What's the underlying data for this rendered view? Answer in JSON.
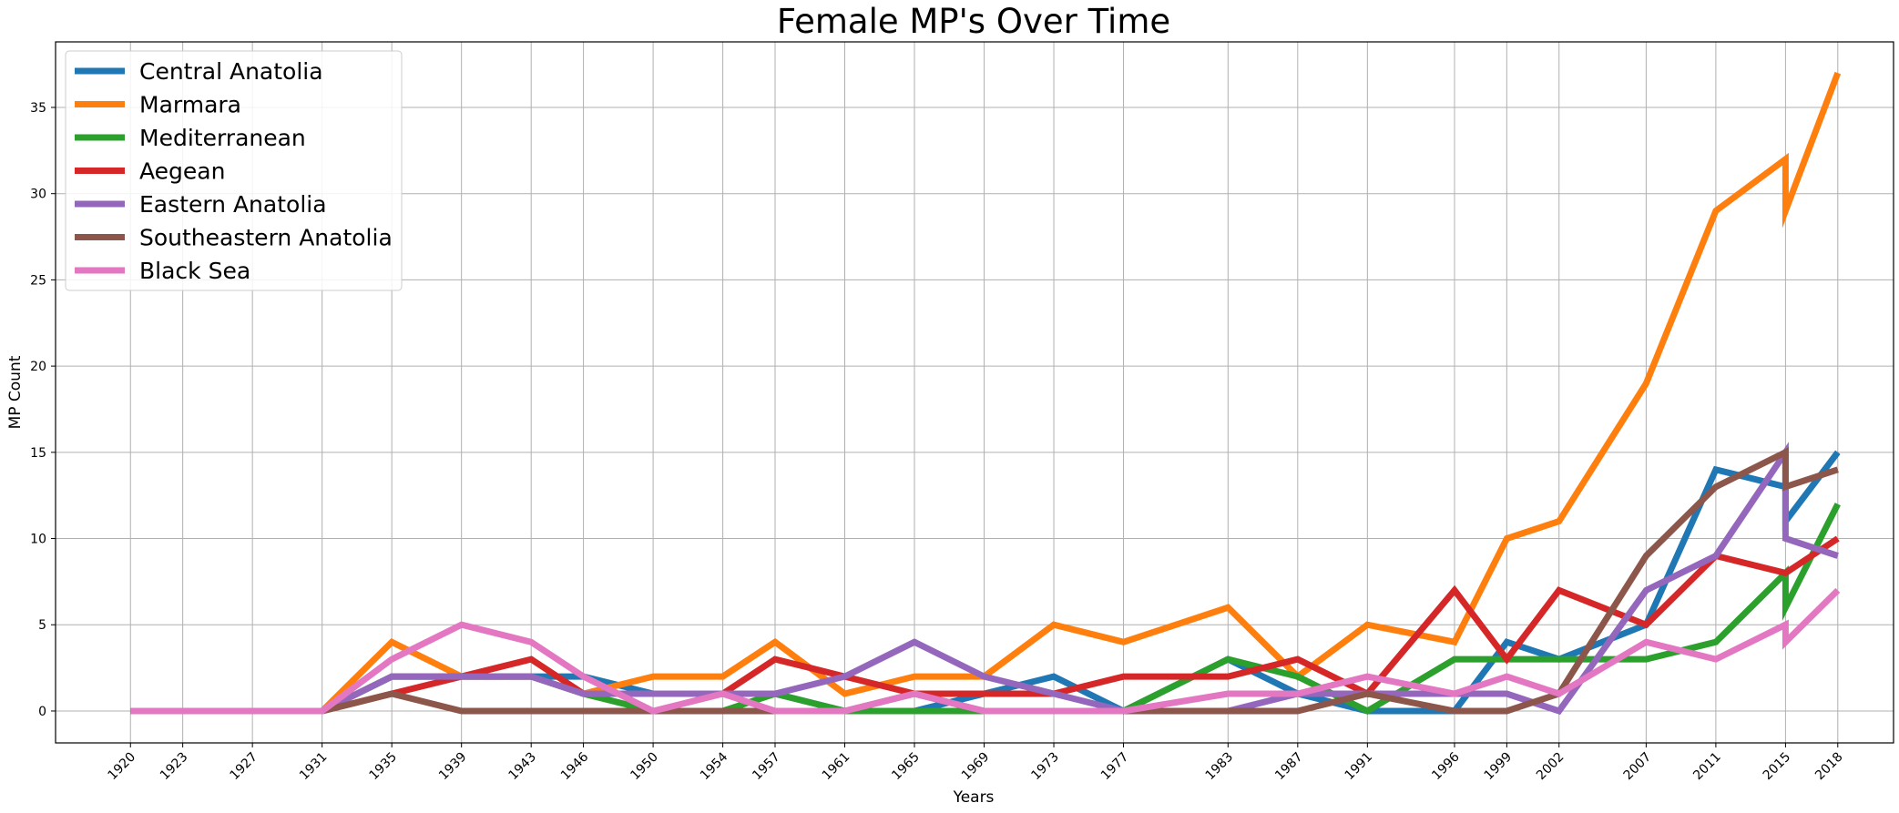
{
  "chart_data": {
    "type": "line",
    "title": "Female MP's Over Time",
    "xlabel": "Years",
    "ylabel": "MP Count",
    "xlim": [
      1915.7,
      2021.2
    ],
    "ylim": [
      -1.85,
      38.8
    ],
    "x_ticks": [
      1920,
      1923,
      1927,
      1931,
      1935,
      1939,
      1943,
      1946,
      1950,
      1954,
      1957,
      1961,
      1965,
      1969,
      1973,
      1977,
      1983,
      1987,
      1991,
      1996,
      1999,
      2002,
      2007,
      2011,
      2015,
      2018
    ],
    "y_ticks": [
      0,
      5,
      10,
      15,
      20,
      25,
      30,
      35
    ],
    "grid": true,
    "legend_position": "top-left",
    "x": [
      1920,
      1923,
      1927,
      1931,
      1935,
      1939,
      1943,
      1946,
      1950,
      1954,
      1957,
      1961,
      1965,
      1969,
      1973,
      1977,
      1983,
      1987,
      1991,
      1996,
      1999,
      2002,
      2007,
      2011,
      2015,
      2015,
      2018
    ],
    "series": [
      {
        "name": "Central Anatolia",
        "color": "#1f77b4",
        "values": [
          0,
          0,
          0,
          0,
          2,
          2,
          2,
          2,
          1,
          1,
          1,
          0,
          0,
          1,
          2,
          0,
          3,
          1,
          0,
          0,
          4,
          3,
          5,
          14,
          13,
          11,
          15
        ]
      },
      {
        "name": "Marmara",
        "color": "#ff7f0e",
        "values": [
          0,
          0,
          0,
          0,
          4,
          2,
          2,
          1,
          2,
          2,
          4,
          1,
          2,
          2,
          5,
          4,
          6,
          2,
          5,
          4,
          10,
          11,
          19,
          29,
          32,
          29,
          37
        ]
      },
      {
        "name": "Mediterranean",
        "color": "#2ca02c",
        "values": [
          0,
          0,
          0,
          0,
          2,
          2,
          2,
          1,
          0,
          0,
          1,
          0,
          0,
          0,
          0,
          0,
          3,
          2,
          0,
          3,
          3,
          3,
          3,
          4,
          8,
          6,
          12
        ]
      },
      {
        "name": "Aegean",
        "color": "#d62728",
        "values": [
          0,
          0,
          0,
          0,
          1,
          2,
          3,
          1,
          1,
          1,
          3,
          2,
          1,
          1,
          1,
          2,
          2,
          3,
          1,
          7,
          3,
          7,
          5,
          9,
          8,
          8,
          10
        ]
      },
      {
        "name": "Eastern Anatolia",
        "color": "#9467bd",
        "values": [
          0,
          0,
          0,
          0,
          2,
          2,
          2,
          1,
          1,
          1,
          1,
          2,
          4,
          2,
          1,
          0,
          0,
          1,
          1,
          1,
          1,
          0,
          7,
          9,
          15,
          10,
          9
        ]
      },
      {
        "name": "Southeastern Anatolia",
        "color": "#8c564b",
        "values": [
          0,
          0,
          0,
          0,
          1,
          0,
          0,
          0,
          0,
          0,
          0,
          0,
          1,
          0,
          0,
          0,
          0,
          0,
          1,
          0,
          0,
          1,
          9,
          13,
          15,
          13,
          14
        ]
      },
      {
        "name": "Black Sea",
        "color": "#e377c2",
        "values": [
          0,
          0,
          0,
          0,
          3,
          5,
          4,
          2,
          0,
          1,
          0,
          0,
          1,
          0,
          0,
          0,
          1,
          1,
          2,
          1,
          2,
          1,
          4,
          3,
          5,
          4,
          7
        ]
      }
    ]
  }
}
